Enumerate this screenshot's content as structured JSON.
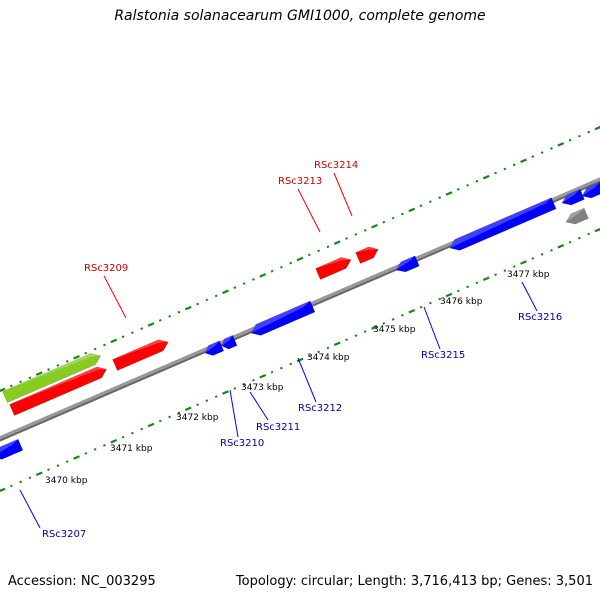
{
  "title": "Ralstonia solanacearum GMI1000, complete genome",
  "footer": {
    "accession": "Accession: NC_003295",
    "topology": "Topology: circular; Length: 3,716,413 bp; Genes: 3,501"
  },
  "colors": {
    "forward": "#ff0000",
    "reverse": "#0000ff",
    "rna": "#88cc22",
    "other": "#808080",
    "backbone": "#999999",
    "tick": "#118811",
    "label_forward": "#cc0000",
    "label_reverse": "#0000aa"
  },
  "kbp_labels": [
    "3470 kbp",
    "3471 kbp",
    "3472 kbp",
    "3473 kbp",
    "3474 kbp",
    "3475 kbp",
    "3476 kbp",
    "3477 kbp"
  ],
  "gene_labels": [
    {
      "name": "RSc3207",
      "strand": "reverse"
    },
    {
      "name": "RSc3209",
      "strand": "forward"
    },
    {
      "name": "RSc3210",
      "strand": "reverse"
    },
    {
      "name": "RSc3211",
      "strand": "reverse"
    },
    {
      "name": "RSc3212",
      "strand": "reverse"
    },
    {
      "name": "RSc3213",
      "strand": "forward"
    },
    {
      "name": "RSc3214",
      "strand": "forward"
    },
    {
      "name": "RSc3215",
      "strand": "reverse"
    },
    {
      "name": "RSc3216",
      "strand": "reverse"
    }
  ]
}
